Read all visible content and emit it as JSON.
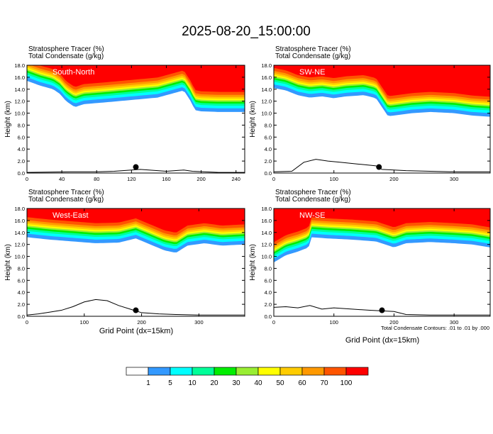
{
  "title": "2025-08-20_15:00:00",
  "panel_header_line1": "Stratosphere Tracer   (%)",
  "panel_header_line2": "Total Condensate   (g/kg)",
  "ylabel": "Height (km)",
  "xlabel": "Grid Point (dx=15km)",
  "contour_note": "Total Condensate Contours: .01 to .01 by .000",
  "colorbar": {
    "labels": [
      "1",
      "5",
      "10",
      "20",
      "30",
      "40",
      "50",
      "60",
      "70",
      "100"
    ],
    "colors": [
      "#ffffff",
      "#3399ff",
      "#00ffff",
      "#00ff99",
      "#00ee00",
      "#99ee33",
      "#ffff00",
      "#ffcc00",
      "#ff9900",
      "#ff5500",
      "#ff0000"
    ]
  },
  "chart_data": [
    {
      "type": "heatmap",
      "name": "South-North",
      "ylim": [
        0,
        18
      ],
      "yticks": [
        0,
        2,
        4,
        6,
        8,
        10,
        12,
        14,
        16,
        18
      ],
      "ytick_labels": [
        "0.0",
        "2.0",
        "4.0",
        "6.0",
        "8.0",
        "10.0",
        "12.0",
        "14.0",
        "16.0",
        "18.0"
      ],
      "xlim": [
        0,
        250
      ],
      "xticks": [
        0,
        40,
        80,
        120,
        160,
        200,
        240
      ],
      "xtick_labels": [
        "0",
        "40",
        "80",
        "120",
        "160",
        "200",
        "240"
      ],
      "tracer_base_km": [
        [
          0,
          15.4
        ],
        [
          15,
          14.6
        ],
        [
          30,
          14.0
        ],
        [
          38,
          13.2
        ],
        [
          45,
          12.0
        ],
        [
          55,
          11.0
        ],
        [
          65,
          11.5
        ],
        [
          90,
          11.8
        ],
        [
          120,
          12.2
        ],
        [
          150,
          12.6
        ],
        [
          180,
          13.8
        ],
        [
          188,
          12.0
        ],
        [
          193,
          10.5
        ],
        [
          200,
          10.3
        ],
        [
          220,
          10.2
        ],
        [
          240,
          10.2
        ],
        [
          250,
          10.2
        ]
      ],
      "terrain_km": [
        [
          0,
          0.1
        ],
        [
          50,
          0.2
        ],
        [
          80,
          0.2
        ],
        [
          100,
          0.3
        ],
        [
          110,
          0.4
        ],
        [
          120,
          0.5
        ],
        [
          130,
          0.6
        ],
        [
          140,
          0.5
        ],
        [
          160,
          0.3
        ],
        [
          180,
          0.5
        ],
        [
          190,
          0.3
        ],
        [
          220,
          0.1
        ],
        [
          250,
          0.1
        ]
      ],
      "marker": {
        "x": 125,
        "y": 1.0
      }
    },
    {
      "type": "heatmap",
      "name": "SW-NE",
      "ylim": [
        0,
        18
      ],
      "yticks": [
        0,
        2,
        4,
        6,
        8,
        10,
        12,
        14,
        16,
        18
      ],
      "ytick_labels": [
        "0.0",
        "2.0",
        "4.0",
        "6.0",
        "8.0",
        "10.0",
        "12.0",
        "14.0",
        "16.0",
        "18.0"
      ],
      "xlim": [
        0,
        360
      ],
      "xticks": [
        0,
        100,
        200,
        300
      ],
      "xtick_labels": [
        "0",
        "100",
        "200",
        "300"
      ],
      "tracer_base_km": [
        [
          0,
          14.2
        ],
        [
          20,
          13.8
        ],
        [
          40,
          13.0
        ],
        [
          60,
          12.6
        ],
        [
          80,
          12.8
        ],
        [
          100,
          12.5
        ],
        [
          120,
          12.8
        ],
        [
          150,
          13.0
        ],
        [
          170,
          12.5
        ],
        [
          180,
          11.0
        ],
        [
          190,
          9.5
        ],
        [
          200,
          9.6
        ],
        [
          230,
          10.0
        ],
        [
          260,
          10.2
        ],
        [
          300,
          10.0
        ],
        [
          330,
          9.6
        ],
        [
          360,
          9.4
        ]
      ],
      "terrain_km": [
        [
          0,
          0.2
        ],
        [
          30,
          0.3
        ],
        [
          50,
          1.8
        ],
        [
          70,
          2.3
        ],
        [
          90,
          2.0
        ],
        [
          110,
          1.8
        ],
        [
          140,
          1.5
        ],
        [
          170,
          1.2
        ],
        [
          180,
          0.6
        ],
        [
          220,
          0.4
        ],
        [
          260,
          0.3
        ],
        [
          300,
          0.2
        ],
        [
          360,
          0.2
        ]
      ],
      "marker": {
        "x": 175,
        "y": 1.0
      }
    },
    {
      "type": "heatmap",
      "name": "West-East",
      "ylim": [
        0,
        18
      ],
      "yticks": [
        0,
        2,
        4,
        6,
        8,
        10,
        12,
        14,
        16,
        18
      ],
      "ytick_labels": [
        "0.0",
        "2.0",
        "4.0",
        "6.0",
        "8.0",
        "10.0",
        "12.0",
        "14.0",
        "16.0",
        "18.0"
      ],
      "xlim": [
        0,
        380
      ],
      "xticks": [
        0,
        100,
        200,
        300
      ],
      "xtick_labels": [
        "0",
        "100",
        "200",
        "300"
      ],
      "tracer_base_km": [
        [
          0,
          13.2
        ],
        [
          40,
          12.8
        ],
        [
          80,
          12.5
        ],
        [
          120,
          12.2
        ],
        [
          160,
          12.3
        ],
        [
          190,
          13.0
        ],
        [
          210,
          12.2
        ],
        [
          240,
          11.0
        ],
        [
          260,
          10.6
        ],
        [
          280,
          11.8
        ],
        [
          310,
          12.2
        ],
        [
          340,
          11.8
        ],
        [
          380,
          12.0
        ]
      ],
      "terrain_km": [
        [
          0,
          0.2
        ],
        [
          20,
          0.4
        ],
        [
          40,
          0.7
        ],
        [
          60,
          1.0
        ],
        [
          80,
          1.6
        ],
        [
          100,
          2.4
        ],
        [
          120,
          2.8
        ],
        [
          140,
          2.6
        ],
        [
          160,
          1.8
        ],
        [
          180,
          1.2
        ],
        [
          200,
          0.6
        ],
        [
          230,
          0.4
        ],
        [
          260,
          0.3
        ],
        [
          300,
          0.2
        ],
        [
          380,
          0.2
        ]
      ],
      "marker": {
        "x": 190,
        "y": 1.0
      }
    },
    {
      "type": "heatmap",
      "name": "NW-SE",
      "ylim": [
        0,
        18
      ],
      "yticks": [
        0,
        2,
        4,
        6,
        8,
        10,
        12,
        14,
        16,
        18
      ],
      "ytick_labels": [
        "0.0",
        "2.0",
        "4.0",
        "6.0",
        "8.0",
        "10.0",
        "12.0",
        "14.0",
        "16.0",
        "18.0"
      ],
      "xlim": [
        0,
        360
      ],
      "xticks": [
        0,
        100,
        200,
        300
      ],
      "xtick_labels": [
        "0",
        "100",
        "200",
        "300"
      ],
      "tracer_base_km": [
        [
          0,
          9.0
        ],
        [
          20,
          10.2
        ],
        [
          40,
          10.8
        ],
        [
          58,
          11.5
        ],
        [
          62,
          13.2
        ],
        [
          90,
          13.0
        ],
        [
          130,
          12.8
        ],
        [
          170,
          12.5
        ],
        [
          200,
          11.5
        ],
        [
          220,
          12.2
        ],
        [
          260,
          12.4
        ],
        [
          300,
          12.2
        ],
        [
          330,
          12.0
        ],
        [
          360,
          11.5
        ]
      ],
      "terrain_km": [
        [
          0,
          1.5
        ],
        [
          20,
          1.6
        ],
        [
          40,
          1.4
        ],
        [
          60,
          1.8
        ],
        [
          80,
          1.2
        ],
        [
          100,
          1.4
        ],
        [
          130,
          1.2
        ],
        [
          160,
          1.0
        ],
        [
          180,
          0.9
        ],
        [
          200,
          0.8
        ],
        [
          220,
          0.3
        ],
        [
          260,
          0.2
        ],
        [
          360,
          0.2
        ]
      ],
      "marker": {
        "x": 180,
        "y": 1.0
      }
    }
  ]
}
